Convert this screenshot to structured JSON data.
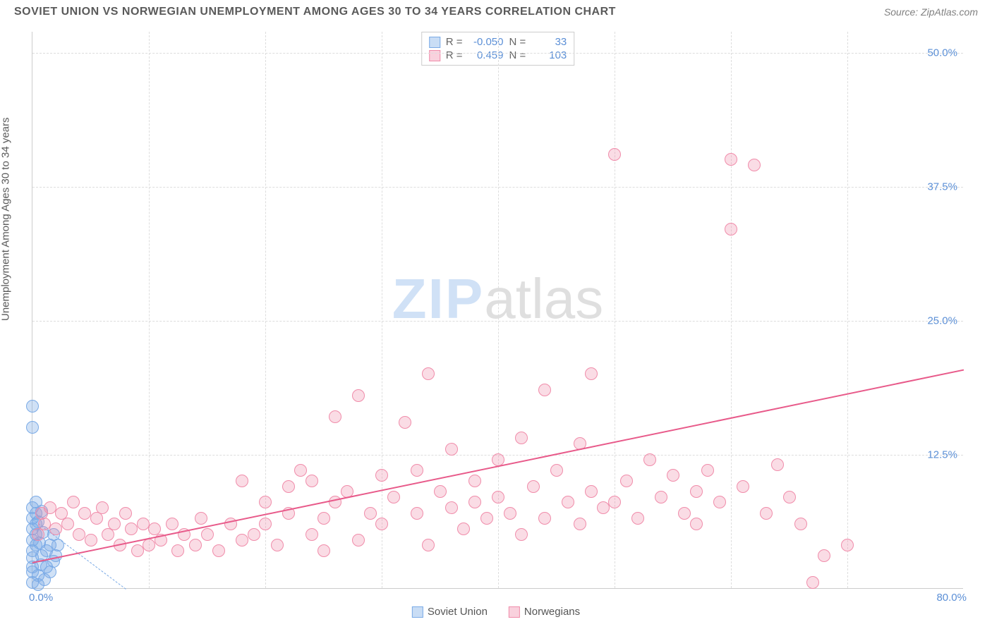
{
  "header": {
    "title": "SOVIET UNION VS NORWEGIAN UNEMPLOYMENT AMONG AGES 30 TO 34 YEARS CORRELATION CHART",
    "source": "Source: ZipAtlas.com"
  },
  "ylabel": "Unemployment Among Ages 30 to 34 years",
  "watermark": {
    "zip": "ZIP",
    "atlas": "atlas"
  },
  "chart": {
    "type": "scatter",
    "background_color": "#ffffff",
    "grid_color": "#dddddd",
    "axis_color": "#cccccc",
    "tick_color": "#5b8fd6",
    "label_color": "#5a5a5a",
    "marker_size": 18,
    "xlim": [
      0,
      80
    ],
    "ylim": [
      0,
      52
    ],
    "yticks": [
      {
        "v": 12.5,
        "label": "12.5%"
      },
      {
        "v": 25.0,
        "label": "25.0%"
      },
      {
        "v": 37.5,
        "label": "37.5%"
      },
      {
        "v": 50.0,
        "label": "50.0%"
      }
    ],
    "xtick_left": "0.0%",
    "xtick_right": "80.0%",
    "xgrid": [
      10,
      20,
      30,
      40,
      50,
      60,
      70
    ],
    "series": {
      "blue": {
        "name": "Soviet Union",
        "fill": "rgba(120,170,230,0.35)",
        "stroke": "#7aaae6",
        "stats": {
          "R": "-0.050",
          "N": "33"
        },
        "trend": {
          "x1": 0,
          "y1": 6.5,
          "x2": 8,
          "y2": 0,
          "dashed": true
        },
        "points": [
          [
            0,
            0.5
          ],
          [
            0,
            1.5
          ],
          [
            0,
            2
          ],
          [
            0,
            2.8
          ],
          [
            0,
            3.5
          ],
          [
            0.3,
            4
          ],
          [
            0,
            4.5
          ],
          [
            0.3,
            5
          ],
          [
            0,
            5.5
          ],
          [
            0.3,
            6
          ],
          [
            0,
            6.5
          ],
          [
            0.3,
            7
          ],
          [
            0,
            7.5
          ],
          [
            0.3,
            8
          ],
          [
            0,
            15
          ],
          [
            0,
            17
          ],
          [
            0.5,
            0.3
          ],
          [
            0.5,
            1.2
          ],
          [
            0.7,
            2.2
          ],
          [
            0.8,
            3
          ],
          [
            0.6,
            4.2
          ],
          [
            0.9,
            5.2
          ],
          [
            0.5,
            6.2
          ],
          [
            0.8,
            7.2
          ],
          [
            1,
            0.8
          ],
          [
            1.2,
            2
          ],
          [
            1.2,
            3.5
          ],
          [
            1.5,
            1.5
          ],
          [
            1.5,
            4
          ],
          [
            1.8,
            2.5
          ],
          [
            2,
            3
          ],
          [
            1.8,
            5
          ],
          [
            2.2,
            4
          ]
        ]
      },
      "pink": {
        "name": "Norwegians",
        "fill": "rgba(240,140,170,0.3)",
        "stroke": "#f08caa",
        "line_color": "#e85a8a",
        "stats": {
          "R": "0.459",
          "N": "103"
        },
        "trend": {
          "x1": 0,
          "y1": 2.5,
          "x2": 80,
          "y2": 20.5,
          "dashed": false
        },
        "points": [
          [
            0.5,
            5
          ],
          [
            0.8,
            7
          ],
          [
            1,
            6
          ],
          [
            1.5,
            7.5
          ],
          [
            2,
            5.5
          ],
          [
            2.5,
            7
          ],
          [
            3,
            6
          ],
          [
            3.5,
            8
          ],
          [
            4,
            5
          ],
          [
            4.5,
            7
          ],
          [
            5,
            4.5
          ],
          [
            5.5,
            6.5
          ],
          [
            6,
            7.5
          ],
          [
            6.5,
            5
          ],
          [
            7,
            6
          ],
          [
            7.5,
            4
          ],
          [
            8,
            7
          ],
          [
            8.5,
            5.5
          ],
          [
            9,
            3.5
          ],
          [
            9.5,
            6
          ],
          [
            10,
            4
          ],
          [
            10.5,
            5.5
          ],
          [
            11,
            4.5
          ],
          [
            12,
            6
          ],
          [
            12.5,
            3.5
          ],
          [
            13,
            5
          ],
          [
            14,
            4
          ],
          [
            14.5,
            6.5
          ],
          [
            15,
            5
          ],
          [
            16,
            3.5
          ],
          [
            17,
            6
          ],
          [
            18,
            4.5
          ],
          [
            18,
            10
          ],
          [
            19,
            5
          ],
          [
            20,
            8
          ],
          [
            20,
            6
          ],
          [
            21,
            4
          ],
          [
            22,
            9.5
          ],
          [
            22,
            7
          ],
          [
            23,
            11
          ],
          [
            24,
            5
          ],
          [
            24,
            10
          ],
          [
            25,
            6.5
          ],
          [
            25,
            3.5
          ],
          [
            26,
            8
          ],
          [
            26,
            16
          ],
          [
            27,
            9
          ],
          [
            28,
            4.5
          ],
          [
            28,
            18
          ],
          [
            29,
            7
          ],
          [
            30,
            6
          ],
          [
            30,
            10.5
          ],
          [
            31,
            8.5
          ],
          [
            32,
            15.5
          ],
          [
            33,
            7
          ],
          [
            33,
            11
          ],
          [
            34,
            20
          ],
          [
            34,
            4
          ],
          [
            35,
            9
          ],
          [
            36,
            7.5
          ],
          [
            36,
            13
          ],
          [
            37,
            5.5
          ],
          [
            38,
            10
          ],
          [
            38,
            8
          ],
          [
            39,
            6.5
          ],
          [
            40,
            12
          ],
          [
            40,
            8.5
          ],
          [
            41,
            7
          ],
          [
            42,
            14
          ],
          [
            42,
            5
          ],
          [
            43,
            9.5
          ],
          [
            44,
            6.5
          ],
          [
            44,
            18.5
          ],
          [
            45,
            11
          ],
          [
            46,
            8
          ],
          [
            47,
            13.5
          ],
          [
            47,
            6
          ],
          [
            48,
            20
          ],
          [
            48,
            9
          ],
          [
            49,
            7.5
          ],
          [
            50,
            40.5
          ],
          [
            50,
            8
          ],
          [
            51,
            10
          ],
          [
            52,
            6.5
          ],
          [
            53,
            12
          ],
          [
            54,
            8.5
          ],
          [
            55,
            10.5
          ],
          [
            56,
            7
          ],
          [
            57,
            9
          ],
          [
            57,
            6
          ],
          [
            58,
            11
          ],
          [
            59,
            8
          ],
          [
            60,
            40
          ],
          [
            60,
            33.5
          ],
          [
            61,
            9.5
          ],
          [
            62,
            39.5
          ],
          [
            63,
            7
          ],
          [
            64,
            11.5
          ],
          [
            65,
            8.5
          ],
          [
            66,
            6
          ],
          [
            67,
            0.5
          ],
          [
            68,
            3
          ],
          [
            70,
            4
          ]
        ]
      }
    }
  },
  "stats_labels": {
    "R": "R =",
    "N": "N ="
  },
  "legend": {
    "series1": "Soviet Union",
    "series2": "Norwegians"
  }
}
